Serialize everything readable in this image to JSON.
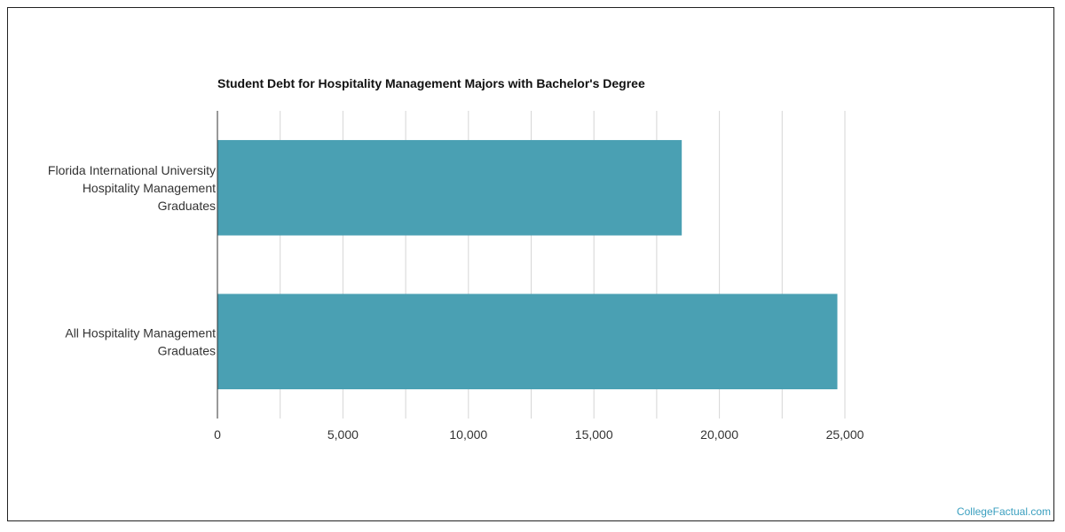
{
  "watermark": "CollegeFactual.com",
  "colors": {
    "bar": "#4aa0b3",
    "grid": "#d6d6d6",
    "axis": "#333333",
    "watermark": "#3a9fbf"
  },
  "chart_data": {
    "type": "bar",
    "orientation": "horizontal",
    "title": "Student Debt for Hospitality Management Majors with Bachelor's Degree",
    "xlabel": "",
    "ylabel": "",
    "categories": [
      [
        "Florida International University",
        "Hospitality Management",
        "Graduates"
      ],
      [
        "All Hospitality Management",
        "Graduates"
      ]
    ],
    "values": [
      18500,
      24700
    ],
    "xlim": [
      0,
      25000
    ],
    "ticks": [
      0,
      5000,
      10000,
      15000,
      20000,
      25000
    ],
    "tick_labels": [
      "0",
      "5,000",
      "10,000",
      "15,000",
      "20,000",
      "25,000"
    ],
    "grid": true,
    "legend": "none"
  }
}
